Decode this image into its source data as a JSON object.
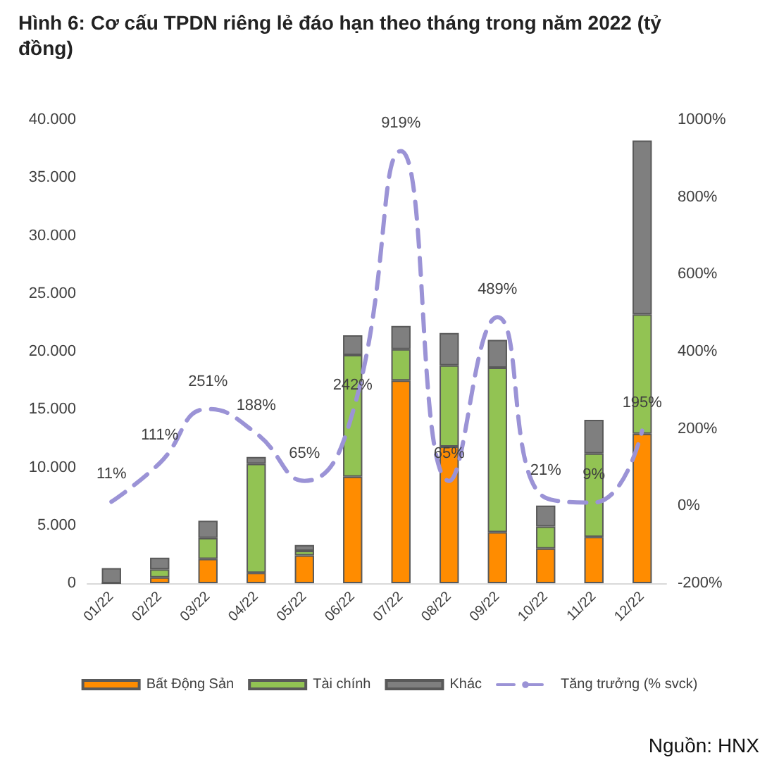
{
  "chart_data": {
    "type": "bar",
    "title": "Hình 6: Cơ cấu TPDN riêng lẻ đáo hạn theo tháng trong năm 2022 (tỷ đồng)",
    "categories": [
      "01/22",
      "02/22",
      "03/22",
      "04/22",
      "05/22",
      "06/22",
      "07/22",
      "08/22",
      "09/22",
      "10/22",
      "11/22",
      "12/22"
    ],
    "stacked": true,
    "series": [
      {
        "name": "Bất Động Sản",
        "color": "#ff8c00",
        "values": [
          0,
          500,
          2100,
          900,
          2400,
          9200,
          17500,
          11800,
          4400,
          3000,
          4000,
          12900
        ]
      },
      {
        "name": "Tài chính",
        "color": "#92c353",
        "values": [
          0,
          700,
          1800,
          9400,
          400,
          10500,
          2700,
          7000,
          14200,
          1900,
          7200,
          10300
        ]
      },
      {
        "name": "Khác",
        "color": "#7f7f7f",
        "values": [
          1300,
          1000,
          1500,
          600,
          500,
          1700,
          2000,
          2800,
          2400,
          1800,
          2900,
          15000
        ]
      },
      {
        "name": "Tăng trưởng (% svck)",
        "type": "line",
        "axis": "y2",
        "color": "#9b93d6",
        "line_style": "dashed",
        "marker": "none",
        "data_labels": true,
        "value_labels": [
          "11%",
          "111%",
          "251%",
          "188%",
          "65%",
          "242%",
          "919%",
          "65%",
          "489%",
          "21%",
          "9%",
          "195%"
        ],
        "values": [
          11,
          111,
          251,
          188,
          65,
          242,
          919,
          65,
          489,
          21,
          9,
          195
        ]
      }
    ],
    "ylim": [
      0,
      40000
    ],
    "yticks": [
      {
        "value": 0,
        "label": "0"
      },
      {
        "value": 5000,
        "label": "5.000"
      },
      {
        "value": 10000,
        "label": "10.000"
      },
      {
        "value": 15000,
        "label": "15.000"
      },
      {
        "value": 20000,
        "label": "20.000"
      },
      {
        "value": 25000,
        "label": "25.000"
      },
      {
        "value": 30000,
        "label": "30.000"
      },
      {
        "value": 35000,
        "label": "35.000"
      },
      {
        "value": 40000,
        "label": "40.000"
      }
    ],
    "y2lim": [
      -200,
      1000
    ],
    "y2ticks": [
      {
        "value": -200,
        "label": "-200%"
      },
      {
        "value": 0,
        "label": "0%"
      },
      {
        "value": 200,
        "label": "200%"
      },
      {
        "value": 400,
        "label": "400%"
      },
      {
        "value": 600,
        "label": "600%"
      },
      {
        "value": 800,
        "label": "800%"
      },
      {
        "value": 1000,
        "label": "1000%"
      }
    ],
    "grid": false,
    "legend": "bottom",
    "annotations": [
      "Nguồn: HNX"
    ]
  }
}
